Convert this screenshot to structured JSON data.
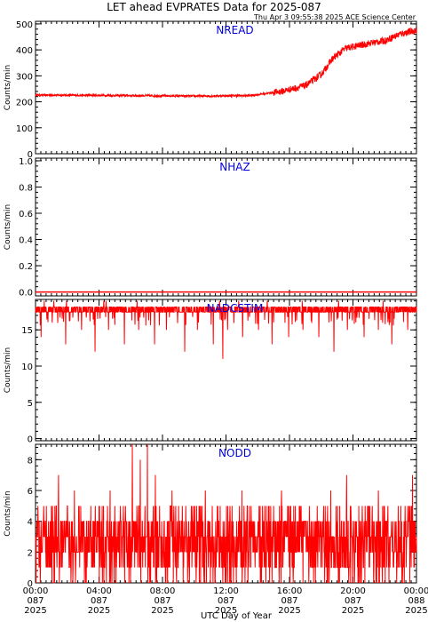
{
  "title": "LET ahead EVPRATES Data for 2025-087",
  "subtitle": "Thu Apr  3 09:55:38 2025 ACE Science Center",
  "x_axis_label": "UTC Day of Year",
  "series_color": "#ff0000",
  "label_color": "#0000dd",
  "chart_data": [
    {
      "type": "line",
      "name": "NREAD",
      "ylabel": "Counts/min",
      "ylim": [
        0,
        510
      ],
      "yticks": [
        0,
        100,
        200,
        300,
        400,
        500
      ],
      "x_range_hours": [
        0,
        24
      ],
      "profile": [
        [
          0,
          226
        ],
        [
          6,
          224
        ],
        [
          10,
          222
        ],
        [
          13.5,
          224
        ],
        [
          15.5,
          240
        ],
        [
          17,
          262
        ],
        [
          18,
          305
        ],
        [
          18.7,
          365
        ],
        [
          19.5,
          405
        ],
        [
          21,
          425
        ],
        [
          22,
          435
        ],
        [
          23,
          462
        ],
        [
          24,
          475
        ]
      ],
      "noise": 18
    },
    {
      "type": "line",
      "name": "NHAZ",
      "ylabel": "Counts/min",
      "ylim": [
        -0.03,
        1.02
      ],
      "yticks": [
        0.0,
        0.2,
        0.4,
        0.6,
        0.8,
        1.0
      ],
      "ytick_labels": [
        "0.0",
        "0.2",
        "0.4",
        "0.6",
        "0.8",
        "1.0"
      ],
      "x_range_hours": [
        0,
        24
      ],
      "values": [
        0
      ]
    },
    {
      "type": "line",
      "name": "NADCSTIM",
      "ylabel": "Counts/min",
      "ylim": [
        -0.3,
        19.2
      ],
      "yticks": [
        0,
        5,
        10,
        15
      ],
      "x_range_hours": [
        0,
        24
      ],
      "baseline": 17.8,
      "dips": [
        [
          0.35,
          14
        ],
        [
          0.55,
          14
        ],
        [
          1.05,
          16
        ],
        [
          1.9,
          13
        ],
        [
          2.9,
          15
        ],
        [
          3.75,
          12
        ],
        [
          4.6,
          15
        ],
        [
          5.6,
          13
        ],
        [
          6.5,
          15
        ],
        [
          7.5,
          13
        ],
        [
          8.25,
          15
        ],
        [
          9.4,
          12
        ],
        [
          10.2,
          15
        ],
        [
          11.2,
          13
        ],
        [
          11.8,
          11
        ],
        [
          12.1,
          15
        ],
        [
          13.05,
          14
        ],
        [
          14.05,
          15
        ],
        [
          14.9,
          13
        ],
        [
          15.95,
          14
        ],
        [
          16.85,
          15
        ],
        [
          17.85,
          14
        ],
        [
          18.8,
          12
        ],
        [
          19.65,
          15
        ],
        [
          20.7,
          14
        ],
        [
          21.6,
          15
        ],
        [
          22.45,
          13
        ],
        [
          23.45,
          15
        ]
      ],
      "spikes": [
        [
          0.55,
          19
        ],
        [
          1.15,
          19
        ],
        [
          1.95,
          19
        ],
        [
          4.3,
          19
        ],
        [
          4.45,
          19
        ],
        [
          6.4,
          19
        ],
        [
          11.6,
          19
        ],
        [
          12.8,
          19
        ],
        [
          14.6,
          19
        ],
        [
          16.8,
          19
        ],
        [
          19.1,
          19
        ],
        [
          21.9,
          19
        ]
      ]
    },
    {
      "type": "line",
      "name": "NODD",
      "ylabel": "Counts/min",
      "ylim": [
        0,
        9
      ],
      "yticks": [
        0,
        2,
        4,
        6,
        8
      ],
      "x_range_hours": [
        0,
        24
      ],
      "value_range": [
        0,
        5
      ],
      "peaks": [
        [
          1.45,
          7
        ],
        [
          2.45,
          6
        ],
        [
          4.7,
          6
        ],
        [
          6.1,
          9
        ],
        [
          6.6,
          8
        ],
        [
          7.05,
          9
        ],
        [
          7.55,
          7
        ],
        [
          8.6,
          6
        ],
        [
          10.7,
          6
        ],
        [
          13.0,
          6
        ],
        [
          15.5,
          6
        ],
        [
          18.6,
          6
        ],
        [
          19.6,
          7
        ],
        [
          21.6,
          6
        ],
        [
          23.75,
          7
        ]
      ],
      "xtick_labels": [
        [
          "00:00",
          "087",
          "2025"
        ],
        [
          "04:00",
          "087",
          "2025"
        ],
        [
          "08:00",
          "087",
          "2025"
        ],
        [
          "12:00",
          "087",
          "2025"
        ],
        [
          "16:00",
          "087",
          "2025"
        ],
        [
          "20:00",
          "087",
          "2025"
        ],
        [
          "00:00",
          "088",
          "2025"
        ]
      ]
    }
  ]
}
